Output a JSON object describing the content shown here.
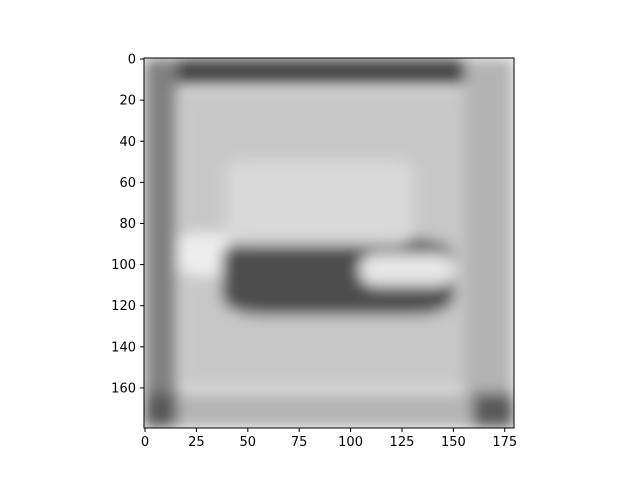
{
  "chart_data": {
    "type": "heatmap",
    "colormap": "gray",
    "title": "",
    "xlabel": "",
    "ylabel": "",
    "xlim": [
      0,
      179
    ],
    "ylim": [
      179,
      0
    ],
    "xticks": [
      "0",
      "25",
      "50",
      "75",
      "100",
      "125",
      "150",
      "175"
    ],
    "yticks": [
      "0",
      "20",
      "40",
      "60",
      "80",
      "100",
      "120",
      "140",
      "160"
    ],
    "image_regions": [
      {
        "region": "top-band",
        "x": [
          0,
          179
        ],
        "y": [
          0,
          12
        ],
        "gray": 0.27
      },
      {
        "region": "bottom-band",
        "x": [
          0,
          179
        ],
        "y": [
          163,
          179
        ],
        "gray": 0.7
      },
      {
        "region": "left-border",
        "x": [
          0,
          15
        ],
        "y": [
          0,
          179
        ],
        "gray": 0.5
      },
      {
        "region": "right-border",
        "x": [
          156,
          179
        ],
        "y": [
          0,
          179
        ],
        "gray": 0.7
      },
      {
        "region": "inner-frame",
        "x": [
          17,
          155
        ],
        "y": [
          15,
          160
        ],
        "gray": 0.78
      },
      {
        "region": "bright-left-patch",
        "x": [
          17,
          45
        ],
        "y": [
          85,
          105
        ],
        "gray": 0.93
      },
      {
        "region": "dark-mound",
        "x": [
          38,
          150
        ],
        "y": [
          88,
          124
        ],
        "gray": 0.3
      },
      {
        "region": "bright-right-patch",
        "x": [
          105,
          150
        ],
        "y": [
          95,
          110
        ],
        "gray": 0.9
      },
      {
        "region": "light-slope",
        "x": [
          40,
          130
        ],
        "y": [
          50,
          90
        ],
        "gray": 0.85
      },
      {
        "region": "dark-corner-bottom-left",
        "x": [
          0,
          15
        ],
        "y": [
          163,
          179
        ],
        "gray": 0.35
      },
      {
        "region": "dark-corner-bottom-right",
        "x": [
          160,
          179
        ],
        "y": [
          163,
          179
        ],
        "gray": 0.35
      }
    ]
  }
}
